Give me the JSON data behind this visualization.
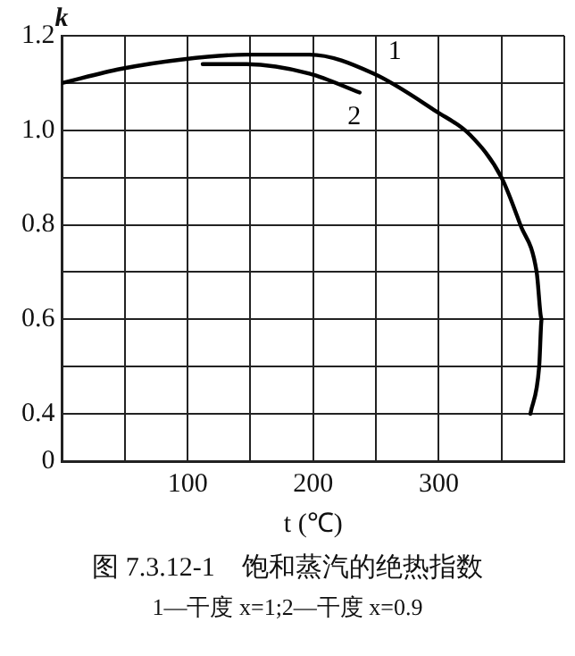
{
  "chart_data": {
    "type": "line",
    "title": "图 7.3.12-1　饱和蒸汽的绝热指数",
    "subtitle": "1—干度 x=1;2—干度 x=0.9",
    "xlabel": "t (℃)",
    "ylabel": "k",
    "xlim": [
      0,
      400
    ],
    "xticks": [
      {
        "value": 0,
        "label": null
      },
      {
        "value": 50,
        "label": null
      },
      100,
      {
        "value": 150,
        "label": null
      },
      200,
      {
        "value": 250,
        "label": null
      },
      300,
      {
        "value": 350,
        "label": null
      },
      {
        "value": 400,
        "label": null
      }
    ],
    "ylim": [
      0.3,
      1.2
    ],
    "yticks": [
      {
        "value": 0.3,
        "label": "0"
      },
      0.4,
      {
        "value": 0.5,
        "label": null
      },
      0.6,
      {
        "value": 0.7,
        "label": null
      },
      0.8,
      {
        "value": 0.9,
        "label": null
      },
      {
        "value": 1.0,
        "label": "1.0"
      },
      {
        "value": 1.1,
        "label": null
      },
      1.2
    ],
    "grid": true,
    "legend": false,
    "marker": "none",
    "line_style": "solid",
    "series": [
      {
        "name": "1",
        "color": "#000000",
        "x": [
          0,
          47,
          96,
          147,
          197,
          248,
          298,
          325,
          350,
          365,
          378,
          382,
          380,
          373
        ],
        "values": [
          1.1,
          1.13,
          1.15,
          1.16,
          1.16,
          1.12,
          1.04,
          0.99,
          0.9,
          0.8,
          0.7,
          0.6,
          0.5,
          0.4
        ]
      },
      {
        "name": "2",
        "color": "#000000",
        "x": [
          112,
          147,
          197,
          237
        ],
        "values": [
          1.14,
          1.14,
          1.12,
          1.08
        ]
      }
    ]
  }
}
